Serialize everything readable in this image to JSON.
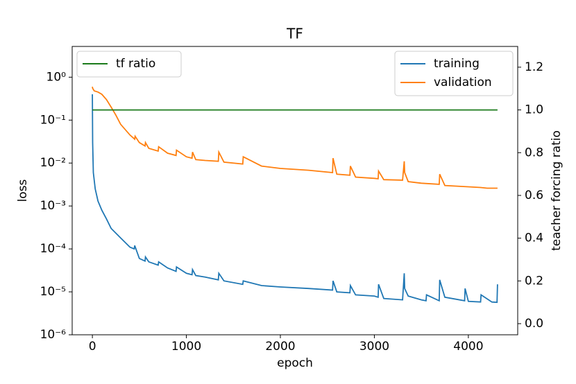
{
  "chart_data": {
    "type": "line",
    "title": "TF",
    "xlabel": "epoch",
    "ylabel": "loss",
    "y2label": "teacher forcing ratio",
    "xlim": [
      -215,
      4525
    ],
    "xticks": [
      0,
      1000,
      2000,
      3000,
      4000
    ],
    "ylim": [
      1e-06,
      5.2
    ],
    "ylog": true,
    "yticks": [
      {
        "value": 1e-06,
        "label": "10⁻⁶"
      },
      {
        "value": 1e-05,
        "label": "10⁻⁵"
      },
      {
        "value": 0.0001,
        "label": "10⁻⁴"
      },
      {
        "value": 0.001,
        "label": "10⁻³"
      },
      {
        "value": 0.01,
        "label": "10⁻²"
      },
      {
        "value": 0.1,
        "label": "10⁻¹"
      },
      {
        "value": 1,
        "label": "10⁰"
      }
    ],
    "y2lim": [
      -0.052,
      1.297
    ],
    "y2ticks": [
      {
        "value": 0,
        "label": "0.0"
      },
      {
        "value": 0.2,
        "label": "0.2"
      },
      {
        "value": 0.4,
        "label": "0.4"
      },
      {
        "value": 0.6,
        "label": "0.6"
      },
      {
        "value": 0.8,
        "label": "0.8"
      },
      {
        "value": 1,
        "label": "1.0"
      },
      {
        "value": 1.2,
        "label": "1.2"
      }
    ],
    "legend": "upper right",
    "legend2": "upper left",
    "series": [
      {
        "name": "training",
        "color": "#1f77b4",
        "x": [
          0,
          3,
          10,
          30,
          60,
          100,
          150,
          200,
          300,
          400,
          445,
          450,
          500,
          560,
          565,
          600,
          700,
          705,
          800,
          890,
          895,
          1000,
          1060,
          1065,
          1100,
          1200,
          1340,
          1345,
          1400,
          1600,
          1605,
          1800,
          2000,
          2300,
          2555,
          2560,
          2600,
          2740,
          2745,
          2800,
          3000,
          3040,
          3045,
          3100,
          3300,
          3318,
          3322,
          3360,
          3500,
          3550,
          3555,
          3690,
          3695,
          3750,
          3960,
          3965,
          4000,
          4130,
          4135,
          4250,
          4305,
          4310
        ],
        "values": [
          0.4,
          0.03,
          0.006,
          0.0025,
          0.0013,
          0.0008,
          0.0005,
          0.0003,
          0.00018,
          0.00011,
          0.0001,
          0.00012,
          6e-05,
          5.2e-05,
          6.5e-05,
          5e-05,
          4.2e-05,
          5e-05,
          3.6e-05,
          3e-05,
          3.8e-05,
          2.7e-05,
          2.5e-05,
          3.3e-05,
          2.4e-05,
          2.2e-05,
          1.9e-05,
          2.7e-05,
          1.8e-05,
          1.5e-05,
          1.8e-05,
          1.4e-05,
          1.3e-05,
          1.2e-05,
          1.1e-05,
          1.8e-05,
          1e-05,
          9.5e-06,
          1.4e-05,
          8.5e-06,
          8e-06,
          7.5e-06,
          1.5e-05,
          7e-06,
          6.5e-06,
          2.7e-05,
          1.2e-05,
          8e-06,
          6.5e-06,
          6.2e-06,
          8.5e-06,
          6.2e-06,
          1.9e-05,
          7.5e-06,
          6.2e-06,
          1.2e-05,
          6e-06,
          5.8e-06,
          8.5e-06,
          5.8e-06,
          5.7e-06,
          1.5e-05
        ]
      },
      {
        "name": "validation",
        "color": "#ff7f0e",
        "x": [
          0,
          3,
          20,
          60,
          100,
          150,
          200,
          250,
          300,
          400,
          450,
          455,
          500,
          560,
          565,
          600,
          700,
          705,
          800,
          890,
          895,
          1000,
          1060,
          1065,
          1100,
          1200,
          1340,
          1345,
          1400,
          1600,
          1605,
          1800,
          2000,
          2300,
          2555,
          2560,
          2600,
          2740,
          2745,
          2800,
          3000,
          3040,
          3045,
          3100,
          3300,
          3318,
          3322,
          3360,
          3500,
          3690,
          3695,
          3750,
          4000,
          4130,
          4200,
          4310
        ],
        "values": [
          0.6,
          0.55,
          0.48,
          0.45,
          0.4,
          0.3,
          0.2,
          0.13,
          0.08,
          0.045,
          0.036,
          0.042,
          0.03,
          0.025,
          0.03,
          0.022,
          0.019,
          0.024,
          0.017,
          0.015,
          0.02,
          0.014,
          0.013,
          0.018,
          0.012,
          0.0115,
          0.011,
          0.018,
          0.0105,
          0.0095,
          0.014,
          0.0085,
          0.0075,
          0.0068,
          0.006,
          0.013,
          0.0055,
          0.0052,
          0.0085,
          0.0047,
          0.0044,
          0.0043,
          0.0065,
          0.0041,
          0.004,
          0.011,
          0.006,
          0.0037,
          0.0034,
          0.0032,
          0.0055,
          0.003,
          0.0028,
          0.0027,
          0.0026,
          0.0026
        ]
      },
      {
        "name": "tf ratio",
        "color": "#1a7a1a",
        "axis": "y2",
        "x": [
          0,
          4310
        ],
        "values": [
          1,
          1
        ]
      }
    ]
  }
}
